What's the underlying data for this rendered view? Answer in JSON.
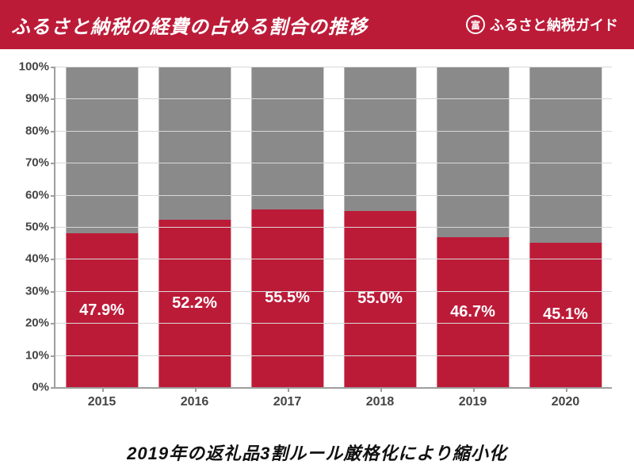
{
  "header": {
    "title": "ふるさと納税の経費の占める割合の推移",
    "brand_text": "ふるさと納税ガイド",
    "brand_icon_glyph": "富",
    "bg_color": "#bc1b38",
    "text_color": "#ffffff",
    "title_fontsize": 24,
    "brand_fontsize": 18
  },
  "chart": {
    "type": "stacked-bar-100",
    "categories": [
      "2015",
      "2016",
      "2017",
      "2018",
      "2019",
      "2020"
    ],
    "values_pct": [
      47.9,
      52.2,
      55.5,
      55.0,
      46.7,
      45.1
    ],
    "value_labels": [
      "47.9%",
      "52.2%",
      "55.5%",
      "55.0%",
      "46.7%",
      "45.1%"
    ],
    "primary_color": "#bc1b38",
    "secondary_color": "#8a8a8a",
    "ylim": [
      0,
      100
    ],
    "ytick_step": 10,
    "ytick_labels": [
      "0%",
      "10%",
      "20%",
      "30%",
      "40%",
      "50%",
      "60%",
      "70%",
      "80%",
      "90%",
      "100%"
    ],
    "grid_color": "#d8d8d8",
    "axis_color": "#9e9e9e",
    "bar_width_pct": 78,
    "label_fontsize": 20,
    "axis_label_fontsize": 15,
    "xaxis_label_fontsize": 16,
    "background_color": "#ffffff",
    "value_label_color": "#ffffff"
  },
  "footer": {
    "text": "2019年の返礼品3割ルール厳格化により縮小化",
    "fontsize": 22,
    "color": "#111111"
  }
}
